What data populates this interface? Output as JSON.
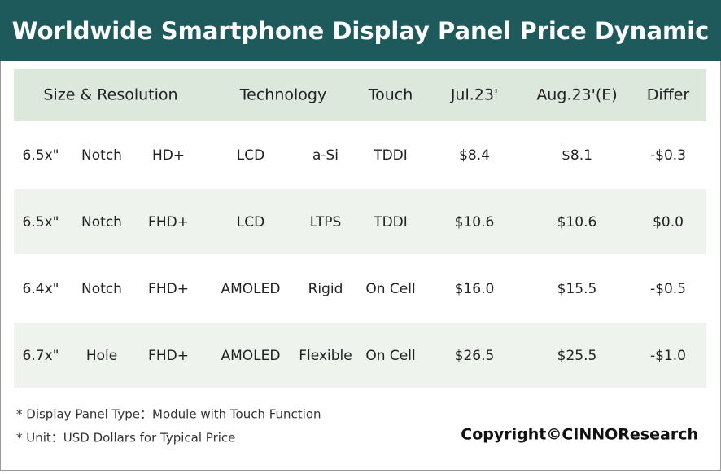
{
  "title": "Worldwide Smartphone Display Panel Price Dynamic",
  "table": {
    "header": [
      "Size & Resolution",
      "Technology",
      "Touch",
      "Jul.23'",
      "Aug.23'(E)",
      "Differ"
    ],
    "rows": [
      [
        "6.5x\"",
        "Notch",
        "HD+",
        "LCD",
        "a-Si",
        "TDDI",
        "$8.4",
        "$8.1",
        "-$0.3"
      ],
      [
        "6.5x\"",
        "Notch",
        "FHD+",
        "LCD",
        "LTPS",
        "TDDI",
        "$10.6",
        "$10.6",
        "$0.0"
      ],
      [
        "6.4x\"",
        "Notch",
        "FHD+",
        "AMOLED",
        "Rigid",
        "On Cell",
        "$16.0",
        "$15.5",
        "-$0.5"
      ],
      [
        "6.7x\"",
        "Hole",
        "FHD+",
        "AMOLED",
        "Flexible",
        "On Cell",
        "$26.5",
        "$25.5",
        "-$1.0"
      ]
    ]
  },
  "notes": [
    "* Display Panel Type：Module with Touch Function",
    "* Unit：USD Dollars for Typical Price"
  ],
  "copyright": "Copyright©CINNOResearch"
}
